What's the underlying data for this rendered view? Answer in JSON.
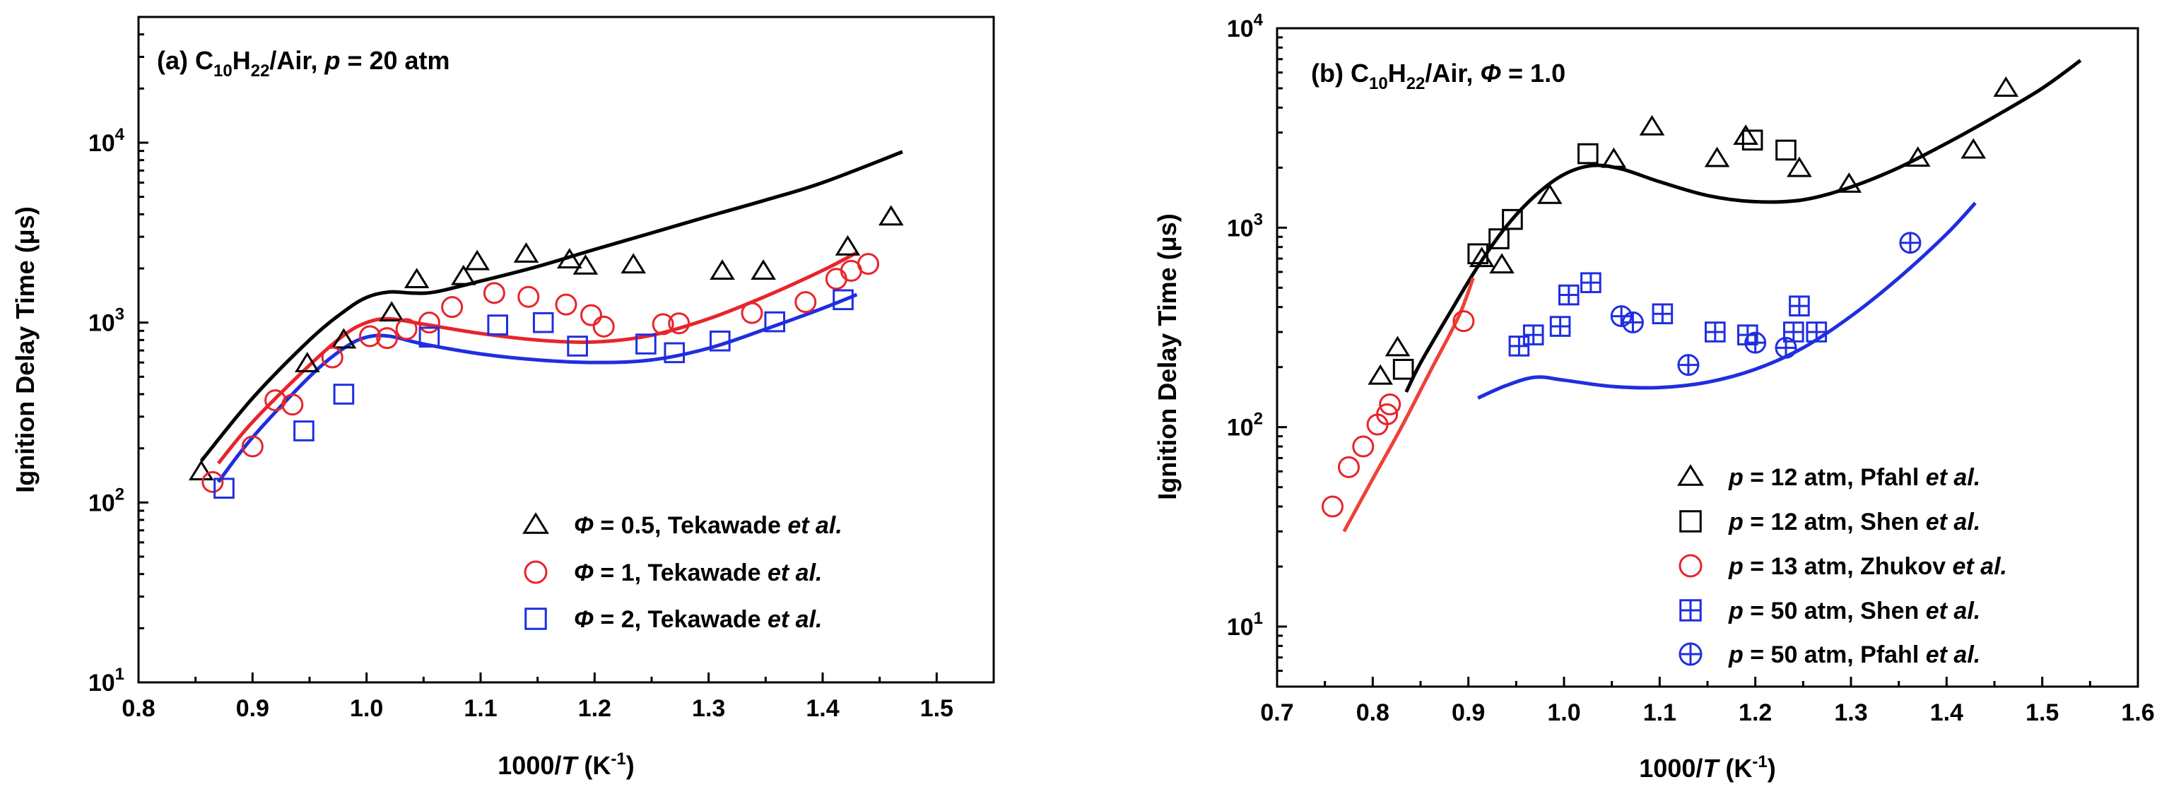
{
  "colors": {
    "black": "#000000",
    "red": "#e8242b",
    "red_model": "#ef4136",
    "blue": "#1f2ee0",
    "axis": "#000000"
  },
  "chart_data": [
    {
      "type": "scatter",
      "panel_label": "(a)",
      "title_parts": {
        "species_C": "C",
        "sub1": "10",
        "species_H": "H",
        "sub2": "22",
        "mixture": "/Air, ",
        "param": "p",
        "condition": " = 20 atm"
      },
      "xlabel_parts": {
        "pre": "1000/",
        "var": "T",
        "unit_open": " (K",
        "sup": "-1",
        "unit_close": ")"
      },
      "ylabel": "Ignition Delay Time (μs)",
      "xlim": [
        0.8,
        1.55
      ],
      "ylim": [
        10,
        50000
      ],
      "yscale": "log",
      "xticks": [
        0.8,
        0.9,
        1.0,
        1.1,
        1.2,
        1.3,
        1.4,
        1.5
      ],
      "xtick_labels": [
        "0.8",
        "0.9",
        "1.0",
        "1.1",
        "1.2",
        "1.3",
        "1.4",
        "1.5"
      ],
      "yticks": [
        10,
        100,
        1000,
        10000
      ],
      "ytick_labels": [
        {
          "base": "10",
          "exp": "1"
        },
        {
          "base": "10",
          "exp": "2"
        },
        {
          "base": "10",
          "exp": "3"
        },
        {
          "base": "10",
          "exp": "4"
        }
      ],
      "legend_position": "bottom-right",
      "series": [
        {
          "name": "Φ = 0.5, Tekawade et al.",
          "legend_parts": {
            "sym": "Φ",
            "val": " = 0.5, Tekawade ",
            "etal": "et al."
          },
          "marker": "triangle",
          "color": "#000000",
          "x": [
            0.855,
            0.948,
            0.98,
            1.022,
            1.044,
            1.085,
            1.097,
            1.14,
            1.178,
            1.192,
            1.234,
            1.312,
            1.348,
            1.422,
            1.46
          ],
          "y": [
            148,
            590,
            800,
            1130,
            1730,
            1800,
            2180,
            2400,
            2230,
            2060,
            2090,
            1930,
            1930,
            2630,
            3860
          ]
        },
        {
          "name": "Φ = 1, Tekawade et al.",
          "legend_parts": {
            "sym": "Φ",
            "val": " = 1, Tekawade ",
            "etal": "et al."
          },
          "marker": "circle",
          "color": "#e8242b",
          "x": [
            0.865,
            0.9,
            0.92,
            0.935,
            0.97,
            1.003,
            1.018,
            1.035,
            1.055,
            1.075,
            1.112,
            1.142,
            1.175,
            1.197,
            1.208,
            1.26,
            1.274,
            1.338,
            1.385,
            1.412,
            1.425,
            1.44
          ],
          "y": [
            130,
            205,
            370,
            350,
            640,
            840,
            820,
            920,
            1000,
            1220,
            1460,
            1390,
            1260,
            1100,
            950,
            980,
            990,
            1130,
            1300,
            1750,
            1940,
            2120
          ]
        },
        {
          "name": "Φ = 2, Tekawade et al.",
          "legend_parts": {
            "sym": "Φ",
            "val": " = 2, Tekawade ",
            "etal": "et al."
          },
          "marker": "square",
          "color": "#1f2ee0",
          "x": [
            0.875,
            0.945,
            0.98,
            1.055,
            1.115,
            1.155,
            1.185,
            1.245,
            1.27,
            1.31,
            1.358,
            1.418
          ],
          "y": [
            120,
            250,
            400,
            830,
            970,
            1000,
            740,
            760,
            680,
            790,
            1010,
            1340
          ]
        }
      ],
      "lines": [
        {
          "name": "model Φ = 0.5",
          "color": "#000000",
          "x": [
            0.855,
            0.9,
            0.95,
            0.98,
            1.0,
            1.02,
            1.04,
            1.06,
            1.1,
            1.15,
            1.2,
            1.25,
            1.3,
            1.35,
            1.4,
            1.47
          ],
          "y": [
            170,
            380,
            800,
            1150,
            1380,
            1480,
            1460,
            1480,
            1700,
            2050,
            2550,
            3150,
            3900,
            4800,
            6000,
            8900
          ]
        },
        {
          "name": "model Φ = 1",
          "color": "#e8242b",
          "x": [
            0.87,
            0.9,
            0.95,
            0.98,
            1.0,
            1.02,
            1.05,
            1.1,
            1.15,
            1.2,
            1.25,
            1.3,
            1.35,
            1.4,
            1.43
          ],
          "y": [
            165,
            280,
            580,
            850,
            1000,
            1050,
            980,
            870,
            800,
            780,
            850,
            1050,
            1400,
            1950,
            2450
          ]
        },
        {
          "name": "model Φ = 2",
          "color": "#1f2ee0",
          "x": [
            0.87,
            0.9,
            0.95,
            0.98,
            1.0,
            1.02,
            1.05,
            1.1,
            1.15,
            1.2,
            1.25,
            1.3,
            1.35,
            1.4,
            1.43
          ],
          "y": [
            130,
            230,
            500,
            720,
            830,
            840,
            760,
            670,
            620,
            600,
            620,
            720,
            920,
            1200,
            1430
          ]
        }
      ]
    },
    {
      "type": "scatter",
      "panel_label": "(b)",
      "title_parts": {
        "species_C": "C",
        "sub1": "10",
        "species_H": "H",
        "sub2": "22",
        "mixture": "/Air, ",
        "param": "Φ",
        "condition": " = 1.0"
      },
      "xlabel_parts": {
        "pre": "1000/",
        "var": "T",
        "unit_open": " (K",
        "sup": "-1",
        "unit_close": ")"
      },
      "ylabel": "Ignition Delay Time (μs)",
      "xlim": [
        0.7,
        1.6
      ],
      "ylim": [
        5,
        10000
      ],
      "yscale": "log",
      "xticks": [
        0.7,
        0.8,
        0.9,
        1.0,
        1.1,
        1.2,
        1.3,
        1.4,
        1.5,
        1.6
      ],
      "xtick_labels": [
        "0.7",
        "0.8",
        "0.9",
        "1.0",
        "1.1",
        "1.2",
        "1.3",
        "1.4",
        "1.5",
        "1.6"
      ],
      "yticks": [
        10,
        100,
        1000,
        10000
      ],
      "ytick_labels": [
        {
          "base": "10",
          "exp": "1"
        },
        {
          "base": "10",
          "exp": "2"
        },
        {
          "base": "10",
          "exp": "3"
        },
        {
          "base": "10",
          "exp": "4"
        }
      ],
      "legend_position": "bottom-right",
      "series": [
        {
          "name": "p = 12 atm, Pfahl et al.",
          "legend_parts": {
            "sym": "p",
            "val": " = 12 atm, Pfahl ",
            "etal": "et al."
          },
          "marker": "triangle",
          "color": "#000000",
          "x": [
            0.808,
            0.826,
            0.914,
            0.935,
            0.985,
            1.052,
            1.092,
            1.16,
            1.19,
            1.246,
            1.298,
            1.37,
            1.428,
            1.462
          ],
          "y": [
            180,
            250,
            700,
            650,
            1450,
            2200,
            3200,
            2220,
            2870,
            1980,
            1650,
            2230,
            2450,
            5000
          ]
        },
        {
          "name": "p = 12 atm, Shen et al.",
          "legend_parts": {
            "sym": "p",
            "val": " = 12 atm, Shen ",
            "etal": "et al."
          },
          "marker": "square",
          "color": "#000000",
          "x": [
            0.832,
            0.91,
            0.932,
            0.946,
            1.025,
            1.197,
            1.232
          ],
          "y": [
            195,
            740,
            880,
            1100,
            2350,
            2750,
            2450
          ]
        },
        {
          "name": "p = 13 atm, Zhukov et al.",
          "legend_parts": {
            "sym": "p",
            "val": " = 13 atm, Zhukov ",
            "etal": "et al."
          },
          "marker": "circle",
          "color": "#e8242b",
          "x": [
            0.758,
            0.775,
            0.79,
            0.805,
            0.815,
            0.818,
            0.895
          ],
          "y": [
            40,
            63,
            80,
            103,
            116,
            130,
            340
          ]
        },
        {
          "name": "p = 50 atm, Shen et al.",
          "legend_parts": {
            "sym": "p",
            "val": " = 50 atm, Shen ",
            "etal": "et al."
          },
          "marker": "square-plus",
          "color": "#1f2ee0",
          "x": [
            0.953,
            0.968,
            0.996,
            1.005,
            1.028,
            1.103,
            1.158,
            1.192,
            1.24,
            1.246,
            1.264
          ],
          "y": [
            255,
            290,
            320,
            460,
            530,
            370,
            300,
            290,
            300,
            405,
            300
          ]
        },
        {
          "name": "p = 50 atm, Pfahl et al.",
          "legend_parts": {
            "sym": "p",
            "val": " = 50 atm, Pfahl ",
            "etal": "et al."
          },
          "marker": "circle-plus",
          "color": "#1f2ee0",
          "x": [
            1.06,
            1.072,
            1.13,
            1.2,
            1.232,
            1.362
          ],
          "y": [
            360,
            335,
            205,
            265,
            250,
            840
          ]
        }
      ],
      "lines": [
        {
          "name": "model p = 12 atm",
          "color": "#000000",
          "x": [
            0.835,
            0.85,
            0.88,
            0.91,
            0.94,
            0.97,
            1.0,
            1.03,
            1.06,
            1.1,
            1.15,
            1.2,
            1.25,
            1.3,
            1.35,
            1.4,
            1.45,
            1.5,
            1.54
          ],
          "y": [
            150,
            210,
            370,
            640,
            1020,
            1450,
            1850,
            2050,
            1970,
            1700,
            1450,
            1350,
            1380,
            1600,
            2000,
            2650,
            3600,
            5000,
            6900
          ]
        },
        {
          "name": "model p = 13 atm",
          "color": "#ef4136",
          "x": [
            0.77,
            0.8,
            0.83,
            0.86,
            0.89,
            0.905
          ],
          "y": [
            30,
            55,
            100,
            190,
            360,
            560
          ]
        },
        {
          "name": "model p = 50 atm",
          "color": "#1f2ee0",
          "x": [
            0.91,
            0.94,
            0.97,
            1.0,
            1.05,
            1.1,
            1.15,
            1.2,
            1.25,
            1.3,
            1.35,
            1.4,
            1.43
          ],
          "y": [
            140,
            162,
            178,
            172,
            160,
            158,
            168,
            195,
            250,
            360,
            560,
            930,
            1330
          ]
        }
      ]
    }
  ]
}
